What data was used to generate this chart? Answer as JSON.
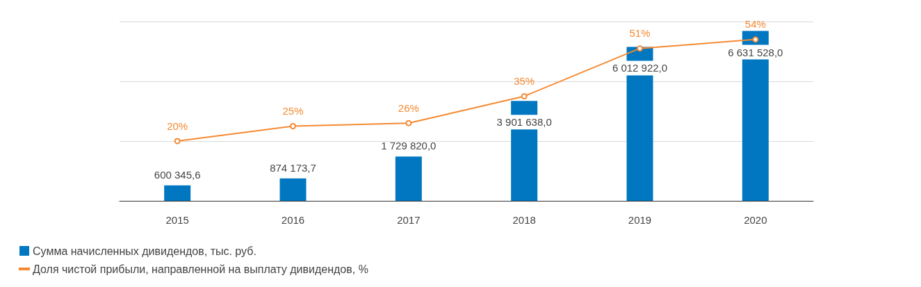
{
  "chart_data": {
    "type": "bar",
    "categories": [
      "2015",
      "2016",
      "2017",
      "2018",
      "2019",
      "2020"
    ],
    "series": [
      {
        "name": "Сумма начисленных дивидендов, тыс. руб.",
        "color": "#0077c0",
        "values": [
          600345.6,
          874173.7,
          1729820.0,
          3901638.0,
          6012922.0,
          6631528.0
        ],
        "value_labels": [
          "600 345,6",
          "874 173,7",
          "1 729 820,0",
          "3 901 638,0",
          "6 012 922,0",
          "6 631 528,0"
        ]
      },
      {
        "name": "Доля чистой прибыли, направленной на выплату дивидендов, %",
        "type": "line",
        "axis": "y2",
        "color": "#f58a32",
        "values": [
          20,
          25,
          26,
          35,
          51,
          54
        ],
        "value_labels": [
          "20%",
          "25%",
          "26%",
          "35%",
          "51%",
          "54%"
        ]
      }
    ],
    "y2lim": [
      0,
      60
    ],
    "y2ticks": [
      {
        "value": 0,
        "label": null
      },
      {
        "value": 20,
        "label": null
      },
      {
        "value": 40,
        "label": null
      },
      {
        "value": 60,
        "label": null
      }
    ],
    "tick_labels": "x",
    "grid": "y",
    "legend": "bottom left",
    "marker": "circle",
    "line_style": "solid"
  }
}
